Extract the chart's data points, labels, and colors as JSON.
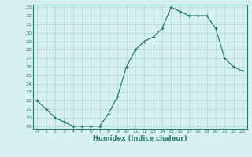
{
  "x": [
    0,
    1,
    2,
    3,
    4,
    5,
    6,
    7,
    8,
    9,
    10,
    11,
    12,
    13,
    14,
    15,
    16,
    17,
    18,
    19,
    20,
    21,
    22,
    23
  ],
  "y": [
    22,
    21,
    20,
    19.5,
    19,
    19,
    19,
    19,
    20.5,
    22.5,
    26,
    28,
    29,
    29.5,
    30.5,
    33,
    32.5,
    32,
    32,
    32,
    30.5,
    27,
    26,
    25.5
  ],
  "xlabel": "Humidex (Indice chaleur)",
  "ylim": [
    19,
    33
  ],
  "xlim": [
    -0.5,
    23.5
  ],
  "yticks": [
    19,
    20,
    21,
    22,
    23,
    24,
    25,
    26,
    27,
    28,
    29,
    30,
    31,
    32,
    33
  ],
  "xticks": [
    0,
    1,
    2,
    3,
    4,
    5,
    6,
    7,
    8,
    9,
    10,
    11,
    12,
    13,
    14,
    15,
    16,
    17,
    18,
    19,
    20,
    21,
    22,
    23
  ],
  "line_color": "#2e7d6e",
  "bg_color": "#d6f0f0",
  "grid_color": "#b0d8d8",
  "font_color": "#2e7d6e"
}
